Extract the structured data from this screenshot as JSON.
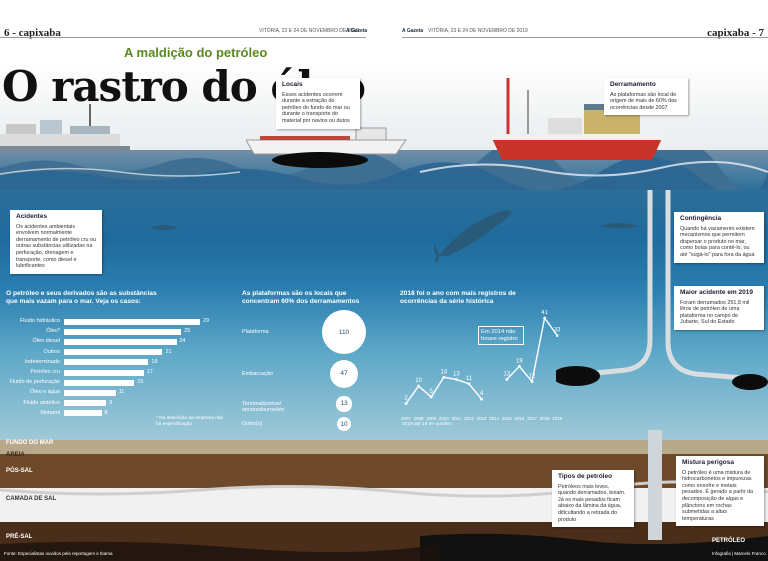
{
  "header": {
    "left_page": "6 - capixaba",
    "right_page": "capixaba - 7",
    "left_date": "VITÓRIA, 23 E 24 DE NOVEMBRO DE 2019",
    "right_date": "VITÓRIA, 23 E 24 DE NOVEMBRO DE 2019",
    "brand": "A Gazeta"
  },
  "kicker": "A maldição do petróleo",
  "headline": "O rastro do óleo",
  "boxes": {
    "locais": {
      "title": "Locais",
      "text": "Esses acidentes ocorrem durante a extração do petróleo do fundo do mar ou durante o transporte do material por navios ou dutos"
    },
    "derramamento": {
      "title": "Derramamento",
      "text": "As plataformas são local de origem de mais de 60% das ocorrências desde 2007"
    },
    "acidentes": {
      "title": "Acidentes",
      "text": "Os acidentes ambientais envolvem normalmente derramamento de petróleo cru ou outras substâncias utilizadas na perfuração, drenagem e transporte, como diesel e lubrificantes"
    },
    "contingencia": {
      "title": "Contingência",
      "text": "Quando há vazamento existem mecanismos que permitem dispersar o produto no mar, como boias para contê-lo, ou até \"sugá-lo\" para fora da água"
    },
    "maior_acidente": {
      "title": "Maior acidente em 2019",
      "text": "Foram derramados 251,8 mil litros de petróleo de uma plataforma no campo de Jubarte, Sul do Estado"
    },
    "tipos": {
      "title": "Tipos de petróleo",
      "text": "Petróleos mais leves, quando derramados, boiam. Já os mais pesados ficam abaixo da lâmina da água, dificultando a retirada do produto"
    },
    "mistura": {
      "title": "Mistura perigosa",
      "text": "O petróleo é uma mistura de hidrocarbonetos e impurezas como enxofre e metais pesados. É gerado a partir da decomposição de algas e plânctons em rochas submetidas a altas temperaturas"
    }
  },
  "chart_data": [
    {
      "type": "bar",
      "orientation": "horizontal",
      "title": "O petróleo e seus derivados são as substâncias que mais vazam para o mar. Veja os casos:",
      "categories": [
        "Fluido hidráulico",
        "Óleo*",
        "Óleo diesel",
        "Outros",
        "Indeterminado",
        "Petróleo cru",
        "Fluido de perfuração",
        "Óleo e água",
        "Fluido sintético",
        "Metanol"
      ],
      "values": [
        29,
        25,
        24,
        21,
        18,
        17,
        15,
        11,
        9,
        8
      ],
      "note": "* Na descrição da empresa não há especificação"
    },
    {
      "type": "bubble",
      "title": "As plataformas são os locais que concentram 60% dos derramamentos",
      "categories": [
        "Plataforma",
        "Embarcação",
        "Terminal/portos/ ancoradouros/etc",
        "Outro(s)"
      ],
      "values": [
        110,
        47,
        13,
        10
      ]
    },
    {
      "type": "line",
      "title": "2018 foi o ano com mais registros de ocorrências da série histórica",
      "x": [
        "2007",
        "2008",
        "2009",
        "2010",
        "2011",
        "2012",
        "2013",
        "2014",
        "2015",
        "2016",
        "2017",
        "2018",
        "2019"
      ],
      "y": [
        2,
        10,
        5,
        14,
        13,
        11,
        4,
        null,
        13,
        19,
        12,
        41,
        33
      ],
      "annotation": "Em 2014 não houve registro",
      "footnote": "2019 até 19 de outubro"
    }
  ],
  "layers": [
    "FUNDO DO MAR",
    "AREIA",
    "PÓS-SAL",
    "CAMADA DE SAL",
    "PRÉ-SAL",
    "PETRÓLEO"
  ],
  "credits": {
    "source": "Fonte: Especialistas ouvidos pela reportagem e Ibama",
    "infographic": "Infografia | Marcelo Franco"
  },
  "colors": {
    "kicker": "#5a8a1f",
    "sea": "#1f6a9c",
    "oil": "#111111"
  }
}
